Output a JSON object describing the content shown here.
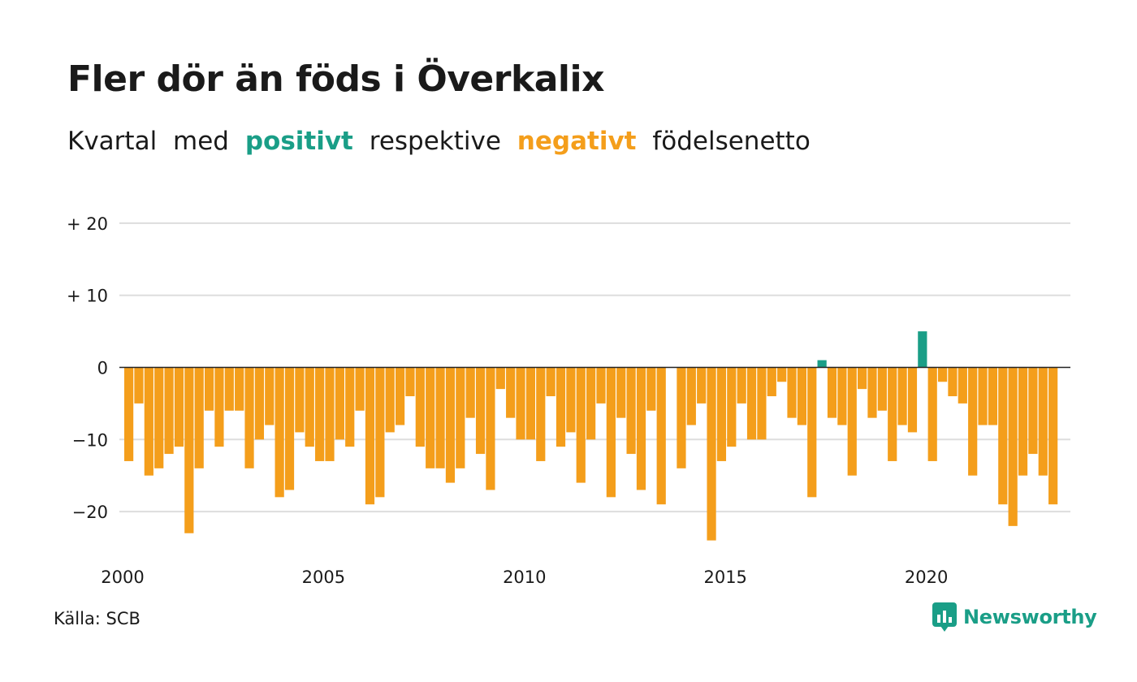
{
  "title": "Fler dör än föds i Överkalix",
  "subtitle": {
    "part1": "Kvartal med",
    "positive": "positivt",
    "part2": "respektive",
    "negative": "negativt",
    "part3": "födelsenetto"
  },
  "source": "Källa: SCB",
  "brand": "Newsworthy",
  "colors": {
    "positive": "#1a9e87",
    "negative": "#f49e1b",
    "grid": "#dddddd",
    "axis": "#222222",
    "text": "#1a1a1a"
  },
  "chart_data": {
    "type": "bar",
    "title": "Fler dör än föds i Överkalix",
    "xlabel": "",
    "ylabel": "",
    "ylim": [
      -25,
      20
    ],
    "yticks": [
      20,
      10,
      0,
      -10,
      -20
    ],
    "ytick_labels": [
      "+ 20",
      "+ 10",
      "0",
      "−10",
      "−20"
    ],
    "xtick_labels": [
      "2000",
      "2005",
      "2010",
      "2015",
      "2020"
    ],
    "grid": true,
    "start_year": 2000,
    "values": [
      -13,
      -5,
      -15,
      -14,
      -12,
      -11,
      -23,
      -14,
      -6,
      -11,
      -6,
      -6,
      -14,
      -10,
      -8,
      -18,
      -17,
      -9,
      -11,
      -13,
      -13,
      -10,
      -11,
      -6,
      -19,
      -18,
      -9,
      -8,
      -4,
      -11,
      -14,
      -14,
      -16,
      -14,
      -7,
      -12,
      -17,
      -3,
      -7,
      -10,
      -10,
      -13,
      -4,
      -11,
      -9,
      -16,
      -10,
      -5,
      -18,
      -7,
      -12,
      -17,
      -6,
      -19,
      0,
      -14,
      -8,
      -5,
      -24,
      -13,
      -11,
      -5,
      -10,
      -10,
      -4,
      -2,
      -7,
      -8,
      -18,
      1,
      -7,
      -8,
      -15,
      -3,
      -7,
      -6,
      -13,
      -8,
      -9,
      5,
      -13,
      -2,
      -4,
      -5,
      -15,
      -8,
      -8,
      -19,
      -22,
      -15,
      -12,
      -15,
      -19
    ]
  }
}
